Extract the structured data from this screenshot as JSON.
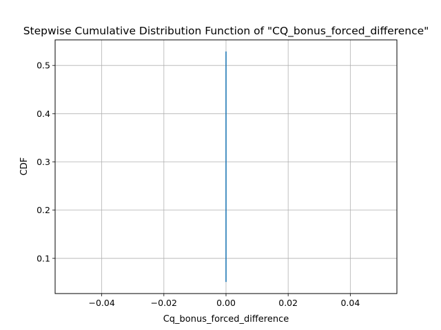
{
  "chart_data": {
    "type": "line",
    "title": "Stepwise Cumulative Distribution Function of \"CQ_bonus_forced_difference\"",
    "xlabel": "Cq_bonus_forced_difference",
    "ylabel": "CDF",
    "xlim": [
      -0.055,
      0.055
    ],
    "ylim": [
      0.027,
      0.553
    ],
    "grid": true,
    "x_ticks": [
      -0.04,
      -0.02,
      0.0,
      0.02,
      0.04
    ],
    "x_tick_labels": [
      "−0.04",
      "−0.02",
      "0.00",
      "0.02",
      "0.04"
    ],
    "y_ticks": [
      0.1,
      0.2,
      0.3,
      0.4,
      0.5
    ],
    "y_tick_labels": [
      "0.1",
      "0.2",
      "0.3",
      "0.4",
      "0.5"
    ],
    "series": [
      {
        "color": "#1f77b4",
        "x": [
          0.0,
          0.0
        ],
        "y": [
          0.051,
          0.529
        ]
      }
    ]
  }
}
